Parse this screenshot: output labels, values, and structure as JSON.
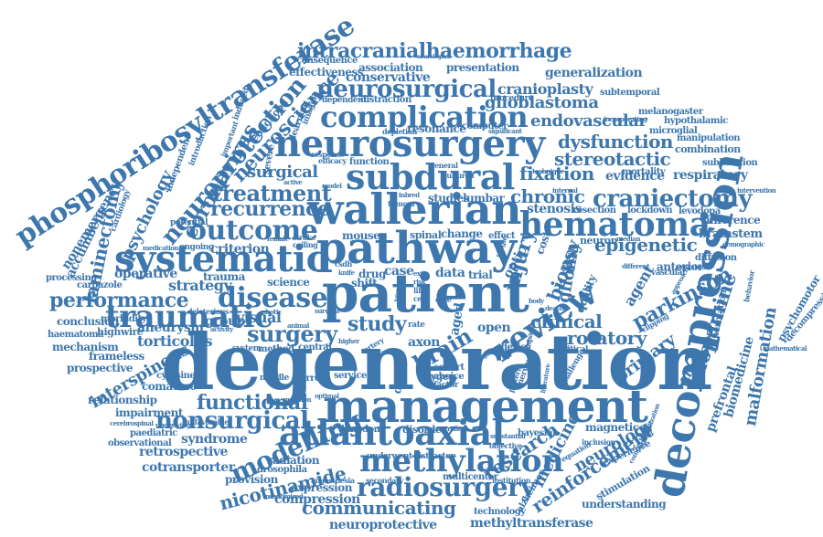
{
  "wordcloud": {
    "color": "#3d77ad",
    "words": {
      "degeneration": "degeneration",
      "management": "management",
      "patient": "patient",
      "decompression": "decompression",
      "pathway": "pathway",
      "wallerian": "wallerian",
      "neurosurgery": "neurosurgery",
      "subdural": "subdural",
      "systematic": "systematic",
      "hematoma": "hematoma",
      "complication": "complication",
      "phosphoribosyltransferase": "phosphoribosyltransferase",
      "atlantoaxial": "atlantoaxial",
      "methylation": "methylation",
      "review": "review",
      "radiosurgery": "radiosurgery",
      "traumatic": "traumatic",
      "craniectomy": "craniectomy",
      "outcome": "outcome",
      "nonsurgical": "nonsurgical",
      "modelling": "modelling",
      "neurosurgical": "neurosurgical",
      "intracranialhaemorrhage": "intracranialhaemorrhage",
      "neuroprotection": "neuroprotection",
      "coronavirus": "coronavirus",
      "neuroscience": "neuroscience",
      "performance": "performance",
      "disease": "disease",
      "treatment": "treatment",
      "recurrence": "recurrence",
      "surgery": "surgery",
      "functional": "functional",
      "nicotinamide": "nicotinamide",
      "communicating": "communicating",
      "dopamine": "dopamine",
      "parkinson": "parkinson",
      "epigenetic": "epigenetic",
      "rotatory": "rotatory",
      "research": "research",
      "reinforcement": "reinforcement",
      "glioma": "glioma",
      "laminectomy": "laminectomy",
      "psychology": "psychology",
      "brain": "brain",
      "study": "study",
      "stereotactic": "stereotactic",
      "dysfunction": "dysfunction",
      "glioblastoma": "glioblastoma",
      "cranioplasty": "cranioplasty",
      "endovascular": "endovascular",
      "fixation": "fixation",
      "chronic": "chronic",
      "surgical": "surgical",
      "clinical": "clinical",
      "injury": "injury",
      "biopsy": "biopsy",
      "primary": "primary",
      "medicine": "medicine",
      "neurology": "neurology",
      "interspinous": "interspinous",
      "torticollis": "torticollis",
      "aneurysm": "aneurysm",
      "group": "group",
      "visual": "visual",
      "strategy": "strategy",
      "operative": "operative",
      "criterion": "criterion",
      "retrospective": "retrospective",
      "syndrome": "syndrome",
      "cotransporter": "cotransporter",
      "compression": "compression",
      "neuroprotective": "neuroprotective",
      "methyltransferase": "methyltransferase",
      "expression": "expression",
      "respiratory": "respiratory",
      "evidence": "evidence",
      "generalization": "generalization",
      "conservative": "conservative",
      "association": "association",
      "presentation": "presentation",
      "effectiveness": "effectiveness",
      "consequence": "consequence",
      "malformation": "malformation",
      "psychomotor": "psychomotor",
      "decompressive": "decompressive",
      "prefrontal": "prefrontal",
      "biomedicine": "biomedicine",
      "analysis": "analysis",
      "agent": "agent",
      "brainstem": "brainstem",
      "inference": "inference",
      "anterior": "anterior",
      "diffusion": "diffusion",
      "subluxation": "subluxation",
      "combination": "combination",
      "manipulation": "manipulation",
      "microglial": "microglial",
      "hypothalamic": "hypothalamic",
      "melanogaster": "melanogaster",
      "subtemporal": "subtemporal",
      "mortality": "mortality",
      "lockdown": "lockdown",
      "levodopa": "levodopa",
      "stenosis": "stenosis",
      "resection": "resection",
      "optic": "optic",
      "quality": "quality",
      "neuron": "neuron",
      "cost": "cost",
      "magnetic": "magnetic",
      "bayesian": "bayesian",
      "understanding": "understanding",
      "stimulation": "stimulation",
      "experience": "experience",
      "alzheimer": "alzheimer",
      "technology": "technology",
      "multicenter": "multicenter",
      "disorder": "disorder",
      "kingdom": "kingdom",
      "radiation": "radiation",
      "drosophila": "drosophila",
      "provision": "provision",
      "highwire": "highwire",
      "haematoma": "haematoma",
      "mechanism": "mechanism",
      "frameless": "frameless",
      "prospective": "prospective",
      "conclusion": "conclusion",
      "morbidity": "morbidity",
      "paediatric": "paediatric",
      "observational": "observational",
      "impairment": "impairment",
      "relationship": "relationship",
      "comatose": "comatose",
      "cytosine": "cytosine",
      "processing": "processing",
      "carbazole": "carbazole",
      "accumbens": "accumbens",
      "nonemergency": "nonemergency",
      "trauma": "trauma",
      "science": "science",
      "case": "case",
      "data": "data",
      "trial": "trial",
      "axon": "axon",
      "aged": "aged",
      "open": "open",
      "shift": "shift",
      "drug": "drug",
      "mouse": "mouse",
      "spinal": "spinal",
      "change": "change",
      "studies": "studies",
      "lumbar": "lumbar",
      "function": "function",
      "resonance": "resonance",
      "computer": "computer",
      "distraction": "distraction",
      "dependent": "dependent",
      "procedure": "procedure",
      "oxygen": "oxygen",
      "service": "service",
      "current": "current",
      "middle": "middle",
      "central": "central",
      "method": "method",
      "system": "system",
      "device": "device",
      "cohort": "cohort",
      "choice": "choice",
      "factor": "factor",
      "driven": "driven",
      "underwent": "underwent",
      "distractor": "distractor",
      "secondary": "secondary",
      "institution": "institution",
      "anaesthesia": "anaesthesia",
      "randomized": "randomized",
      "objective": "objective",
      "inclusion": "inclusion",
      "equation": "equation",
      "critical": "critical",
      "challenge": "challenge",
      "nervous": "nervous",
      "deleterious": "deleterious",
      "childhood": "childhood",
      "introduction": "introduction",
      "independent": "independent",
      "induced": "induced",
      "important": "important",
      "severe": "severe",
      "learning": "learning",
      "imaging": "imaging",
      "potential": "potential",
      "ongoing": "ongoing",
      "cardiology": "cardiology",
      "medication": "medication",
      "coiling": "coiling",
      "stroke": "stroke",
      "female": "female",
      "depletion": "depletion",
      "cultured": "cultured",
      "general": "general",
      "efficacy": "efficacy",
      "response": "response",
      "inbred": "inbred",
      "tumour": "tumour",
      "knife": "knife",
      "csdh": "csdh",
      "patients": "patients",
      "internal": "internal",
      "symptom": "symptom",
      "vascular": "vascular",
      "assisted": "assisted",
      "demographic": "demographic",
      "herniation": "herniation",
      "behavior": "behavior",
      "mathematical": "mathematical",
      "intervention": "intervention",
      "incorporating": "incorporating",
      "unfavorable": "unfavorable",
      "underlying": "underlying",
      "cerebrospinal": "cerebrospinal",
      "substantial": "substantial",
      "tortuosity": "tortuosity",
      "clipping": "clipping",
      "different": "different",
      "median": "median",
      "sample": "sample",
      "question": "question",
      "optimal": "optimal",
      "photic": "photic",
      "animal": "animal",
      "survival": "survival",
      "hypoglossal": "hypoglossal",
      "activity": "activity",
      "frame": "frame",
      "model": "model",
      "active": "active",
      "quantification": "quantification",
      "year": "year",
      "life": "life",
      "cell": "cell",
      "care": "care",
      "exit": "exit",
      "risk": "risk",
      "rate": "rate",
      "body": "body",
      "death": "death",
      "single": "single",
      "limited": "limited",
      "literature": "literature",
      "pattern": "pattern",
      "impact": "impact",
      "major": "major",
      "adult": "adult",
      "adverse": "adverse",
      "higher": "higher",
      "artery": "artery",
      "effect": "effect",
      "neurological": "neurological",
      "significant": "significant",
      "technique": "technique",
      "controlled": "controlled",
      "immobilization": "immobilization",
      "comparison": "comparison",
      "approach": "approach",
      "disability": "disability",
      "cerebral": "cerebral",
      "improved": "improved",
      "surveillance": "surveillance",
      "cervical": "cervical",
      "transcranial": "transcranial",
      "baseline": "baseline",
      "condition": "condition"
    }
  }
}
